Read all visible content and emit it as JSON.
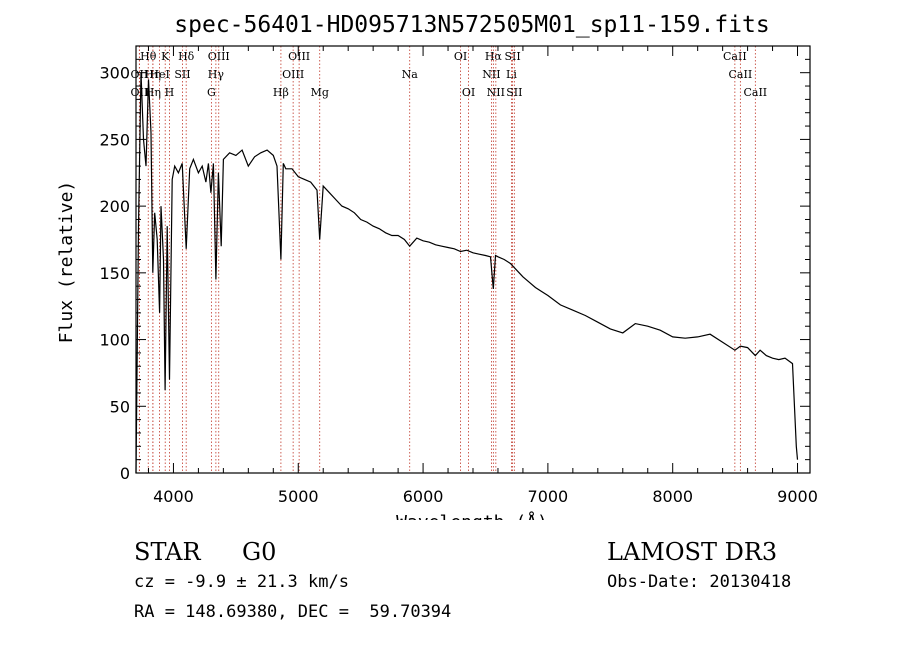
{
  "chart_data": {
    "type": "line",
    "title": "spec-56401-HD095713N572505M01_sp11-159.fits",
    "xlabel": "Wavelength (Å)",
    "ylabel": "Flux (relative)",
    "xlim": [
      3700,
      9100
    ],
    "ylim": [
      0,
      320
    ],
    "xticks": [
      4000,
      5000,
      6000,
      7000,
      8000,
      9000
    ],
    "yticks": [
      0,
      50,
      100,
      150,
      200,
      250,
      300
    ],
    "grid": false,
    "series": [
      {
        "name": "flux",
        "x": [
          3700,
          3720,
          3740,
          3760,
          3780,
          3800,
          3820,
          3835,
          3850,
          3870,
          3889,
          3900,
          3920,
          3933,
          3950,
          3968,
          3990,
          4010,
          4040,
          4070,
          4102,
          4130,
          4160,
          4200,
          4230,
          4260,
          4280,
          4300,
          4320,
          4340,
          4360,
          4383,
          4400,
          4450,
          4500,
          4550,
          4600,
          4650,
          4700,
          4750,
          4800,
          4830,
          4861,
          4880,
          4900,
          4950,
          5000,
          5050,
          5100,
          5150,
          5172,
          5200,
          5250,
          5300,
          5350,
          5400,
          5450,
          5500,
          5550,
          5600,
          5650,
          5700,
          5750,
          5800,
          5850,
          5893,
          5950,
          6000,
          6050,
          6100,
          6150,
          6200,
          6250,
          6300,
          6350,
          6400,
          6450,
          6500,
          6540,
          6563,
          6580,
          6600,
          6650,
          6700,
          6750,
          6800,
          6850,
          6900,
          6950,
          7000,
          7100,
          7200,
          7300,
          7400,
          7500,
          7600,
          7700,
          7800,
          7900,
          8000,
          8100,
          8200,
          8300,
          8400,
          8498,
          8542,
          8600,
          8662,
          8700,
          8750,
          8800,
          8850,
          8900,
          8960,
          8990,
          9000
        ],
        "y": [
          0,
          185,
          300,
          250,
          230,
          295,
          255,
          150,
          195,
          175,
          120,
          200,
          160,
          62,
          185,
          70,
          220,
          230,
          225,
          232,
          168,
          228,
          235,
          225,
          230,
          218,
          232,
          210,
          232,
          145,
          225,
          170,
          235,
          240,
          238,
          242,
          230,
          237,
          240,
          242,
          238,
          230,
          160,
          232,
          228,
          228,
          222,
          220,
          218,
          212,
          175,
          215,
          210,
          205,
          200,
          198,
          195,
          190,
          188,
          185,
          183,
          180,
          178,
          178,
          175,
          170,
          176,
          174,
          173,
          171,
          170,
          169,
          168,
          166,
          167,
          165,
          164,
          163,
          162,
          138,
          163,
          162,
          160,
          157,
          152,
          147,
          143,
          139,
          136,
          133,
          126,
          122,
          118,
          113,
          108,
          105,
          112,
          110,
          107,
          102,
          101,
          102,
          104,
          98,
          92,
          95,
          94,
          88,
          92,
          88,
          86,
          85,
          86,
          82,
          20,
          10
        ]
      }
    ],
    "lines": [
      {
        "label": "Hθ",
        "x": 3798,
        "row": 0
      },
      {
        "label": "K",
        "x": 3934,
        "row": 0
      },
      {
        "label": "Hδ",
        "x": 4102,
        "row": 0
      },
      {
        "label": "OIII",
        "x": 4363,
        "row": 0
      },
      {
        "label": "OIII",
        "x": 5007,
        "row": 0
      },
      {
        "label": "OI",
        "x": 6300,
        "row": 0
      },
      {
        "label": "Hα",
        "x": 6563,
        "row": 0
      },
      {
        "label": "SII",
        "x": 6717,
        "row": 0
      },
      {
        "label": "CaII",
        "x": 8498,
        "row": 0
      },
      {
        "label": "OII",
        "x": 3727,
        "row": 1
      },
      {
        "label": "Hη",
        "x": 3835,
        "row": 1
      },
      {
        "label": "HeI",
        "x": 3889,
        "row": 1
      },
      {
        "label": "SII",
        "x": 4072,
        "row": 1
      },
      {
        "label": "Hγ",
        "x": 4340,
        "row": 1
      },
      {
        "label": "OIII",
        "x": 4959,
        "row": 1
      },
      {
        "label": "Na",
        "x": 5893,
        "row": 1
      },
      {
        "label": "NII",
        "x": 6548,
        "row": 1
      },
      {
        "label": "Li",
        "x": 6708,
        "row": 1
      },
      {
        "label": "CaII",
        "x": 8542,
        "row": 1
      },
      {
        "label": "OII",
        "x": 3727,
        "row": 2
      },
      {
        "label": "Hη",
        "x": 3835,
        "row": 2
      },
      {
        "label": "H",
        "x": 3968,
        "row": 2
      },
      {
        "label": "G",
        "x": 4304,
        "row": 2
      },
      {
        "label": "Hβ",
        "x": 4861,
        "row": 2
      },
      {
        "label": "Mg",
        "x": 5172,
        "row": 2
      },
      {
        "label": "OI",
        "x": 6364,
        "row": 2
      },
      {
        "label": "NII",
        "x": 6583,
        "row": 2
      },
      {
        "label": "SII",
        "x": 6731,
        "row": 2
      },
      {
        "label": "CaII",
        "x": 8662,
        "row": 2
      }
    ]
  },
  "info": {
    "class": "STAR",
    "subclass": "G0",
    "survey": "LAMOST DR3",
    "cz": "cz = -9.9 ± 21.3 km/s",
    "obs_date": "Obs-Date: 20130418",
    "radec": "RA = 148.69380, DEC =  59.70394"
  }
}
